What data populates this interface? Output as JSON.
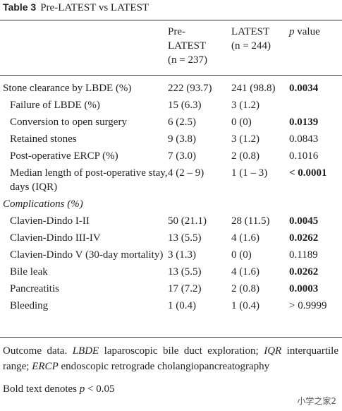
{
  "title": {
    "label": "Table 3",
    "text": "Pre-LATEST vs LATEST"
  },
  "header": [
    {
      "lines": [
        "Pre-",
        "LATEST",
        "(n = 237)"
      ]
    },
    {
      "lines": [
        "LATEST",
        "(n = 244)"
      ]
    },
    {
      "lines": [
        "p value"
      ],
      "italic_word": "p"
    }
  ],
  "rows": [
    {
      "label": "Stone clearance by LBDE (%)",
      "pre": "222 (93.7)",
      "latest": "241 (98.8)",
      "p": "0.0034",
      "bold": true
    },
    {
      "label": "Failure of LBDE (%)",
      "pre": "15 (6.3)",
      "latest": "3 (1.2)",
      "p": "",
      "indent": true
    },
    {
      "label": "Conversion to open surgery",
      "pre": "6 (2.5)",
      "latest": "0 (0)",
      "p": "0.0139",
      "bold": true,
      "indent": true
    },
    {
      "label": "Retained stones",
      "pre": "9 (3.8)",
      "latest": "3 (1.2)",
      "p": "0.0843",
      "indent": true
    },
    {
      "label": "Post-operative ERCP (%)",
      "pre": "7 (3.0)",
      "latest": "2 (0.8)",
      "p": "0.1016",
      "indent": true
    },
    {
      "label": "Median length of post-operative stay, days (IQR)",
      "pre": "4 (2 – 9)",
      "latest": "1 (1 – 3)",
      "p": "< 0.0001",
      "bold": true,
      "indent": true
    },
    {
      "label": "Complications (%)",
      "section": true
    },
    {
      "label": "Clavien-Dindo I-II",
      "pre": "50 (21.1)",
      "latest": "28 (11.5)",
      "p": "0.0045",
      "bold": true,
      "indent": true
    },
    {
      "label": "Clavien-Dindo III-IV",
      "pre": "13 (5.5)",
      "latest": "4 (1.6)",
      "p": "0.0262",
      "bold": true,
      "indent": true
    },
    {
      "label": "Clavien-Dindo V (30-day mortality)",
      "pre": "3 (1.3)",
      "latest": "0 (0)",
      "p": "0.1189",
      "indent": true
    },
    {
      "label": "Bile leak",
      "pre": "13 (5.5)",
      "latest": "4 (1.6)",
      "p": "0.0262",
      "bold": true,
      "indent": true
    },
    {
      "label": "Pancreatitis",
      "pre": "17 (7.2)",
      "latest": "2 (0.8)",
      "p": "0.0003",
      "bold": true,
      "indent": true
    },
    {
      "label": "Bleeding",
      "pre": "1 (0.4)",
      "latest": "1 (0.4)",
      "p": "> 0.9999",
      "indent": true
    }
  ],
  "footnotes": [
    [
      {
        "text": "Outcome data. "
      },
      {
        "text": "LBDE",
        "italic": true
      },
      {
        "text": " laparoscopic bile duct exploration; "
      },
      {
        "text": "IQR",
        "italic": true
      },
      {
        "text": " interquartile range; "
      },
      {
        "text": "ERCP",
        "italic": true
      },
      {
        "text": " endoscopic retrograde cholangiopancreatography"
      }
    ],
    [
      {
        "text": "Bold text denotes "
      },
      {
        "text": "p",
        "italic": true
      },
      {
        "text": " < 0.05"
      }
    ]
  ],
  "watermark": "小学之家2"
}
